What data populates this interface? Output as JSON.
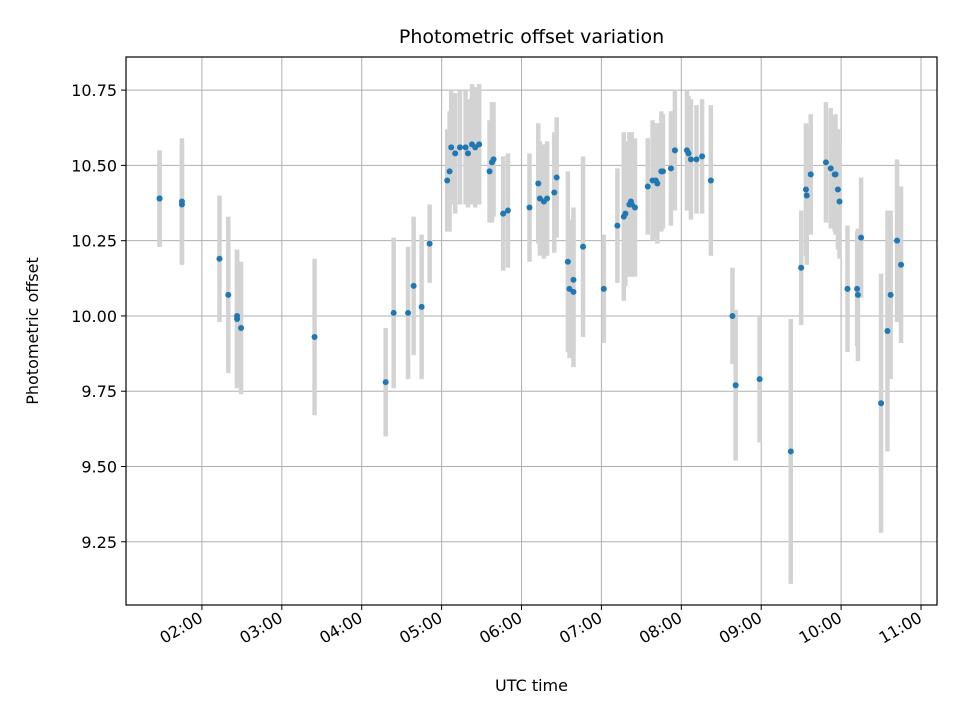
{
  "chart_data": {
    "type": "scatter",
    "title": "Photometric offset variation",
    "xlabel": "UTC time",
    "ylabel": "Photometric offset",
    "x_tick_labels": [
      "02:00",
      "03:00",
      "04:00",
      "05:00",
      "06:00",
      "07:00",
      "08:00",
      "09:00",
      "10:00",
      "11:00"
    ],
    "x_tick_hours": [
      2,
      3,
      4,
      5,
      6,
      7,
      8,
      9,
      10,
      11
    ],
    "y_tick_labels": [
      "9.25",
      "9.50",
      "9.75",
      "10.00",
      "10.25",
      "10.50",
      "10.75"
    ],
    "y_tick_values": [
      9.25,
      9.5,
      9.75,
      10.0,
      10.25,
      10.5,
      10.75
    ],
    "xlim_hours": [
      1.05,
      11.2
    ],
    "ylim": [
      9.04,
      10.86
    ],
    "grid": true,
    "point_color": "#1f77b4",
    "errorbar_color": "#d3d3d3",
    "series": [
      {
        "x_hours": [
          1.47,
          1.47,
          1.75,
          1.75,
          2.22,
          2.33,
          2.44,
          2.44,
          2.49,
          3.41,
          4.3,
          4.4,
          4.58,
          4.65,
          4.75,
          4.85,
          5.07,
          5.1,
          5.12,
          5.17,
          5.23,
          5.3,
          5.33,
          5.38,
          5.42,
          5.47,
          5.6,
          5.63,
          5.65,
          5.77,
          5.83,
          6.1,
          6.21,
          6.23,
          6.28,
          6.32,
          6.41,
          6.44,
          6.58,
          6.6,
          6.65,
          6.65,
          6.77,
          7.03,
          7.2,
          7.28,
          7.3,
          7.35,
          7.37,
          7.38,
          7.42,
          7.58,
          7.64,
          7.68,
          7.7,
          7.75,
          7.77,
          7.87,
          7.92,
          8.07,
          8.09,
          8.12,
          8.19,
          8.26,
          8.37,
          8.64,
          8.68,
          8.98,
          9.37,
          9.5,
          9.56,
          9.57,
          9.62,
          9.81,
          9.87,
          9.92,
          9.93,
          9.96,
          9.98,
          10.08,
          10.2,
          10.21,
          10.25,
          10.5,
          10.58,
          10.62,
          10.7,
          10.75
        ],
        "y": [
          10.39,
          10.39,
          10.37,
          10.38,
          10.19,
          10.07,
          9.99,
          10.0,
          9.96,
          9.93,
          9.78,
          10.01,
          10.01,
          10.1,
          10.03,
          10.24,
          10.45,
          10.48,
          10.56,
          10.54,
          10.56,
          10.56,
          10.54,
          10.57,
          10.56,
          10.57,
          10.48,
          10.51,
          10.52,
          10.34,
          10.35,
          10.36,
          10.44,
          10.39,
          10.38,
          10.39,
          10.41,
          10.46,
          10.18,
          10.09,
          10.08,
          10.12,
          10.23,
          10.09,
          10.3,
          10.33,
          10.34,
          10.37,
          10.38,
          10.37,
          10.36,
          10.43,
          10.45,
          10.45,
          10.44,
          10.48,
          10.48,
          10.49,
          10.55,
          10.55,
          10.54,
          10.52,
          10.52,
          10.53,
          10.45,
          10.0,
          9.77,
          9.79,
          9.55,
          10.16,
          10.42,
          10.4,
          10.47,
          10.51,
          10.49,
          10.47,
          10.47,
          10.42,
          10.38,
          10.09,
          10.09,
          10.07,
          10.26,
          9.71,
          9.95,
          10.07,
          10.25,
          10.17
        ],
        "err": [
          0.16,
          0.16,
          0.2,
          0.21,
          0.21,
          0.26,
          0.23,
          0.22,
          0.22,
          0.26,
          0.18,
          0.25,
          0.22,
          0.23,
          0.24,
          0.13,
          0.17,
          0.2,
          0.19,
          0.2,
          0.19,
          0.19,
          0.18,
          0.2,
          0.2,
          0.2,
          0.17,
          0.2,
          0.19,
          0.19,
          0.19,
          0.18,
          0.2,
          0.19,
          0.19,
          0.19,
          0.2,
          0.2,
          0.3,
          0.23,
          0.25,
          0.24,
          0.3,
          0.18,
          0.19,
          0.28,
          0.24,
          0.24,
          0.23,
          0.24,
          0.23,
          0.16,
          0.2,
          0.19,
          0.2,
          0.2,
          0.19,
          0.19,
          0.2,
          0.2,
          0.19,
          0.2,
          0.18,
          0.19,
          0.25,
          0.16,
          0.25,
          0.21,
          0.44,
          0.19,
          0.22,
          0.23,
          0.2,
          0.2,
          0.2,
          0.19,
          0.2,
          0.2,
          0.19,
          0.21,
          0.19,
          0.22,
          0.2,
          0.43,
          0.4,
          0.28,
          0.27,
          0.26
        ]
      }
    ]
  }
}
